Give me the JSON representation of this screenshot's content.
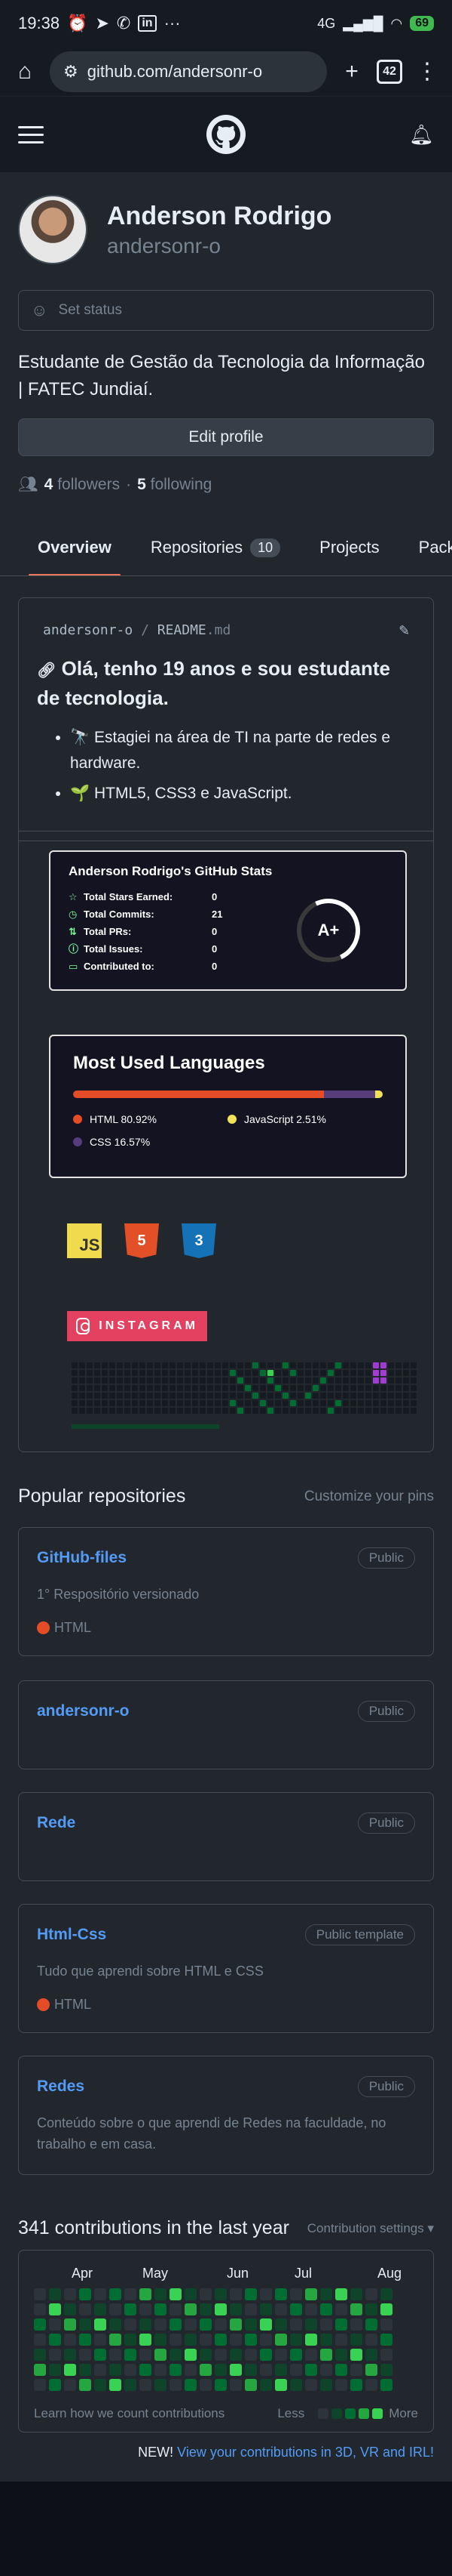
{
  "statusbar": {
    "time": "19:38",
    "dots": "···",
    "signal": "4G",
    "battery": "69"
  },
  "browser": {
    "url": "github.com/andersonr-o",
    "tabs": "42"
  },
  "profile": {
    "name": "Anderson Rodrigo",
    "login": "andersonr-o",
    "status": "Set status",
    "bio": "Estudante de Gestão da Tecnologia da Informação | FATEC Jundiaí.",
    "edit": "Edit profile",
    "followers_count": "4",
    "followers_label": "followers",
    "sep": "·",
    "following_count": "5",
    "following_label": "following"
  },
  "tabs": [
    {
      "label": "Overview"
    },
    {
      "label": "Repositories",
      "count": "10"
    },
    {
      "label": "Projects"
    },
    {
      "label": "Packages"
    }
  ],
  "readme": {
    "owner": "andersonr-o",
    "slash": "/",
    "file": "README",
    "ext": ".md",
    "title": "Olá, tenho 19 anos e sou estudante de tecnologia.",
    "items": [
      "🔭 Estagiei na área de TI na parte de redes e hardware.",
      "🌱 HTML5, CSS3 e JavaScript."
    ]
  },
  "stats": {
    "title": "Anderson Rodrigo's GitHub Stats",
    "rows": [
      {
        "icon": "☆",
        "label": "Total Stars Earned:",
        "value": "0"
      },
      {
        "icon": "◷",
        "label": "Total Commits:",
        "value": "21"
      },
      {
        "icon": "⇅",
        "label": "Total PRs:",
        "value": "0"
      },
      {
        "icon": "ⓘ",
        "label": "Total Issues:",
        "value": "0"
      },
      {
        "icon": "▭",
        "label": "Contributed to:",
        "value": "0"
      }
    ],
    "grade": "A+"
  },
  "languages": {
    "title": "Most Used Languages",
    "items": [
      {
        "name": "HTML",
        "percent": 80.92,
        "label": "HTML 80.92%",
        "color": "#e34c26"
      },
      {
        "name": "JavaScript",
        "percent": 2.51,
        "label": "JavaScript 2.51%",
        "color": "#f1e05a"
      },
      {
        "name": "CSS",
        "percent": 16.57,
        "label": "CSS 16.57%",
        "color": "#563d7c"
      }
    ]
  },
  "tech": {
    "js": "JS",
    "html": "5",
    "css": "3"
  },
  "instagram": "INSTAGRAM",
  "popular": {
    "title": "Popular repositories",
    "action": "Customize your pins",
    "repos": [
      {
        "name": "GitHub-files",
        "badge": "Public",
        "desc": "1° Respositório versionado",
        "lang": "HTML"
      },
      {
        "name": "andersonr-o",
        "badge": "Public",
        "desc": "",
        "lang": ""
      },
      {
        "name": "Rede",
        "badge": "Public",
        "desc": "",
        "lang": ""
      },
      {
        "name": "Html-Css",
        "badge": "Public template",
        "desc": "Tudo que aprendi sobre HTML e CSS",
        "lang": "HTML"
      },
      {
        "name": "Redes",
        "badge": "Public",
        "desc": "Conteúdo sobre o que aprendi de Redes na faculdade, no trabalho e em casa.",
        "lang": ""
      }
    ]
  },
  "contributions": {
    "title": "341 contributions in the last year",
    "settings": "Contribution settings ▾",
    "months": [
      "Apr",
      "May",
      "Jun",
      "Jul",
      "Aug"
    ],
    "learn": "Learn how we count contributions",
    "less": "Less",
    "more": "More",
    "new_label": "NEW!",
    "new_link": "View your contributions in 3D, VR and IRL!"
  },
  "colors": {
    "accent": "#539bf5",
    "tab_underline": "#ec775c",
    "green": [
      "#0e4429",
      "#006d32",
      "#26a641",
      "#39d353"
    ]
  }
}
